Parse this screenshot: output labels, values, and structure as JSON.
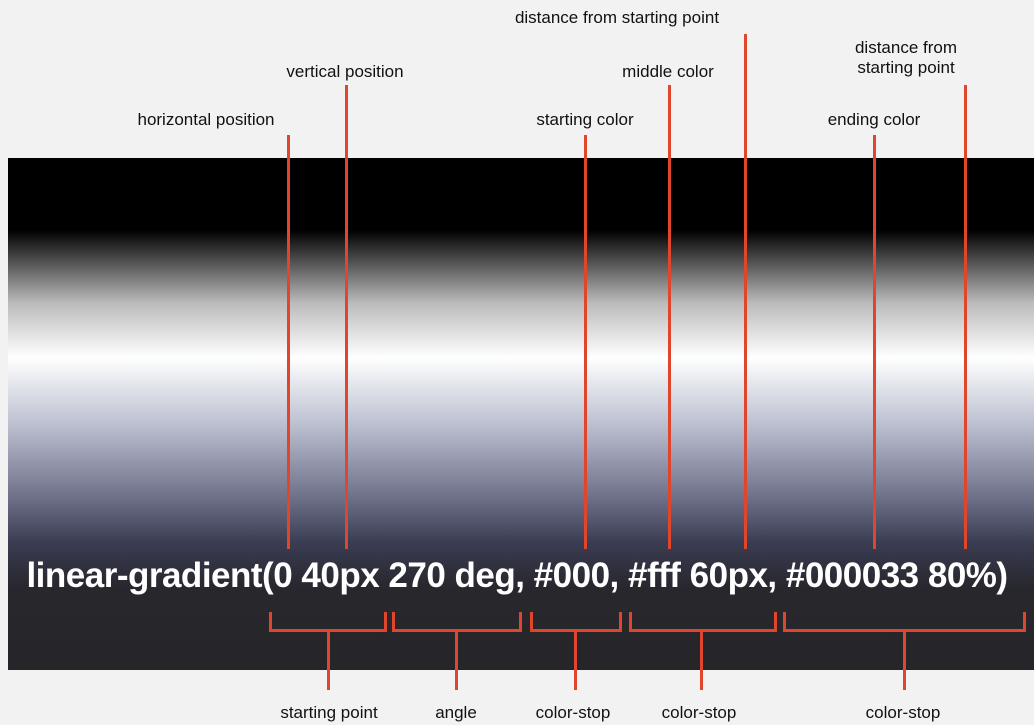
{
  "top_labels": {
    "horizontal_position": "horizontal position",
    "vertical_position": "vertical position",
    "starting_color": "starting color",
    "middle_color": "middle color",
    "distance_from_starting_point_1": "distance from starting point",
    "ending_color": "ending color",
    "distance_from_starting_point_2": "distance from starting point"
  },
  "code": "linear-gradient(0 40px 270 deg, #000, #fff 60px, #000033 80%)",
  "bottom_labels": {
    "starting_point": "starting point",
    "angle": "angle",
    "color_stop_1": "color-stop",
    "color_stop_2": "color-stop",
    "color_stop_3": "color-stop"
  },
  "colors": {
    "leader_lines": "#e0462b",
    "background": "#f2f2f2",
    "code_text": "#ffffff"
  }
}
